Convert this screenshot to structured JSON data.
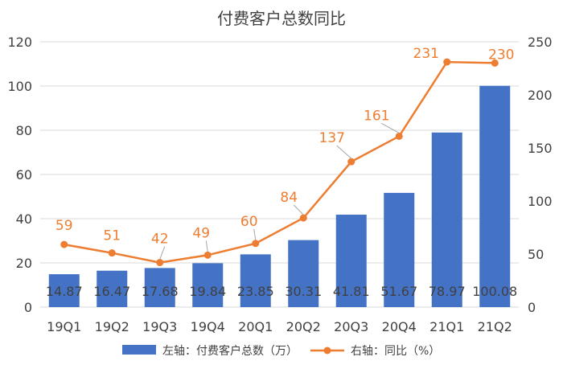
{
  "chart_data": {
    "type": "bar",
    "title": "付费客户总数同比",
    "categories": [
      "19Q1",
      "19Q2",
      "19Q3",
      "19Q4",
      "20Q1",
      "20Q2",
      "20Q3",
      "20Q4",
      "21Q1",
      "21Q2"
    ],
    "series": [
      {
        "name": "左轴：付费客户总数（万）",
        "type": "bar",
        "axis": "left",
        "color": "#4472c4",
        "values": [
          14.87,
          16.47,
          17.68,
          19.84,
          23.85,
          30.31,
          41.81,
          51.67,
          78.97,
          100.08
        ],
        "labels": [
          "14.87",
          "16.47",
          "17.68",
          "19.84",
          "23.85",
          "30.31",
          "41.81",
          "51.67",
          "78.97",
          "100.08"
        ]
      },
      {
        "name": "右轴：同比（%）",
        "type": "line",
        "axis": "right",
        "color": "#ed7d31",
        "values": [
          59,
          51,
          42,
          49,
          60,
          84,
          137,
          161,
          231,
          230
        ],
        "labels": [
          "59",
          "51",
          "42",
          "49",
          "60",
          "84",
          "137",
          "161",
          "231",
          "230"
        ]
      }
    ],
    "left_axis": {
      "min": 0,
      "max": 120,
      "ticks": [
        "0",
        "20",
        "40",
        "60",
        "80",
        "100",
        "120"
      ]
    },
    "right_axis": {
      "min": 0,
      "max": 250,
      "ticks": [
        "0",
        "50",
        "100",
        "150",
        "200",
        "250"
      ]
    },
    "grid": true,
    "legend_position": "bottom"
  }
}
